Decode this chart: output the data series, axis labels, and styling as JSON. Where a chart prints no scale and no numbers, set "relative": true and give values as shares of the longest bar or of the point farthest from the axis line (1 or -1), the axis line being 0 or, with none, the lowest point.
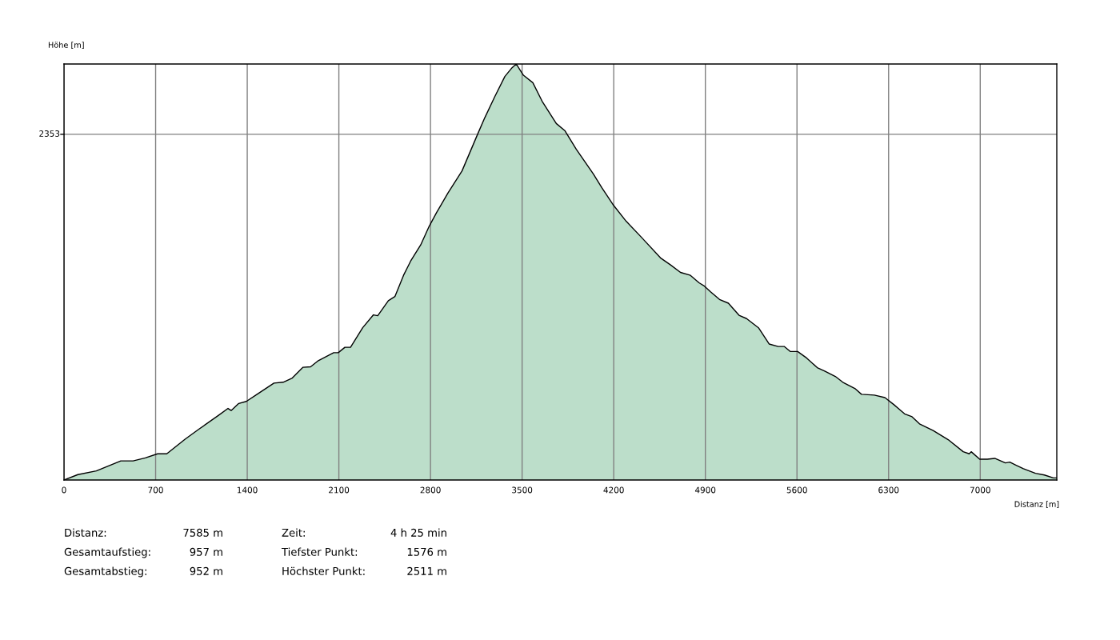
{
  "chart_data": {
    "type": "area",
    "xlabel": "Distanz [m]",
    "ylabel": "Höhe [m]",
    "relative": true,
    "x": [
      0,
      106,
      247,
      434,
      528,
      621,
      715,
      785,
      925,
      1030,
      1183,
      1253,
      1277,
      1335,
      1393,
      1475,
      1604,
      1674,
      1744,
      1826,
      1884,
      1943,
      2060,
      2095,
      2146,
      2189,
      2282,
      2364,
      2397,
      2478,
      2528,
      2594,
      2648,
      2725,
      2790,
      2845,
      2932,
      3041,
      3161,
      3215,
      3292,
      3368,
      3423,
      3455,
      3510,
      3582,
      3652,
      3761,
      3826,
      3914,
      4044,
      4110,
      4197,
      4295,
      4416,
      4557,
      4634,
      4710,
      4786,
      4852,
      4893,
      4938,
      5008,
      5076,
      5157,
      5215,
      5306,
      5387,
      5456,
      5502,
      5548,
      5605,
      5675,
      5755,
      5812,
      5893,
      5950,
      6042,
      6093,
      6191,
      6272,
      6341,
      6422,
      6479,
      6536,
      6640,
      6755,
      6870,
      6916,
      6931,
      6996,
      7054,
      7111,
      7192,
      7226,
      7330,
      7422,
      7490,
      7559,
      7585
    ],
    "values": [
      0,
      0.013,
      0.022,
      0.046,
      0.046,
      0.053,
      0.063,
      0.063,
      0.098,
      0.122,
      0.156,
      0.172,
      0.167,
      0.184,
      0.189,
      0.206,
      0.233,
      0.235,
      0.245,
      0.271,
      0.272,
      0.287,
      0.306,
      0.306,
      0.319,
      0.319,
      0.366,
      0.397,
      0.395,
      0.431,
      0.441,
      0.492,
      0.526,
      0.565,
      0.61,
      0.642,
      0.689,
      0.743,
      0.832,
      0.871,
      0.922,
      0.97,
      0.991,
      1,
      0.973,
      0.955,
      0.911,
      0.857,
      0.84,
      0.795,
      0.736,
      0.702,
      0.661,
      0.622,
      0.582,
      0.534,
      0.517,
      0.499,
      0.492,
      0.474,
      0.466,
      0.453,
      0.434,
      0.425,
      0.396,
      0.388,
      0.366,
      0.327,
      0.321,
      0.321,
      0.309,
      0.309,
      0.293,
      0.27,
      0.262,
      0.249,
      0.235,
      0.22,
      0.206,
      0.204,
      0.198,
      0.181,
      0.159,
      0.152,
      0.135,
      0.119,
      0.097,
      0.068,
      0.063,
      0.068,
      0.05,
      0.05,
      0.052,
      0.041,
      0.043,
      0.027,
      0.016,
      0.012,
      0.005,
      0.005
    ],
    "color": "#bcdeca",
    "xlim": [
      0,
      7585
    ],
    "xticks": [
      0,
      700,
      1400,
      2100,
      2800,
      3500,
      4200,
      4900,
      5600,
      6300,
      7000
    ],
    "grid": "x",
    "ref_lines": [
      {
        "axis": "y",
        "value": 0.831,
        "color": "#808080"
      }
    ],
    "annotations": [
      "2353",
      "Distanz:",
      "7585 m",
      "Zeit:",
      "4 h 25 min",
      "Gesamtaufstieg:",
      "957 m",
      "Tiefster Punkt:",
      "1576 m",
      "Gesamtabstieg:",
      "952 m",
      "Höchster Punkt:",
      "2511 m"
    ]
  }
}
